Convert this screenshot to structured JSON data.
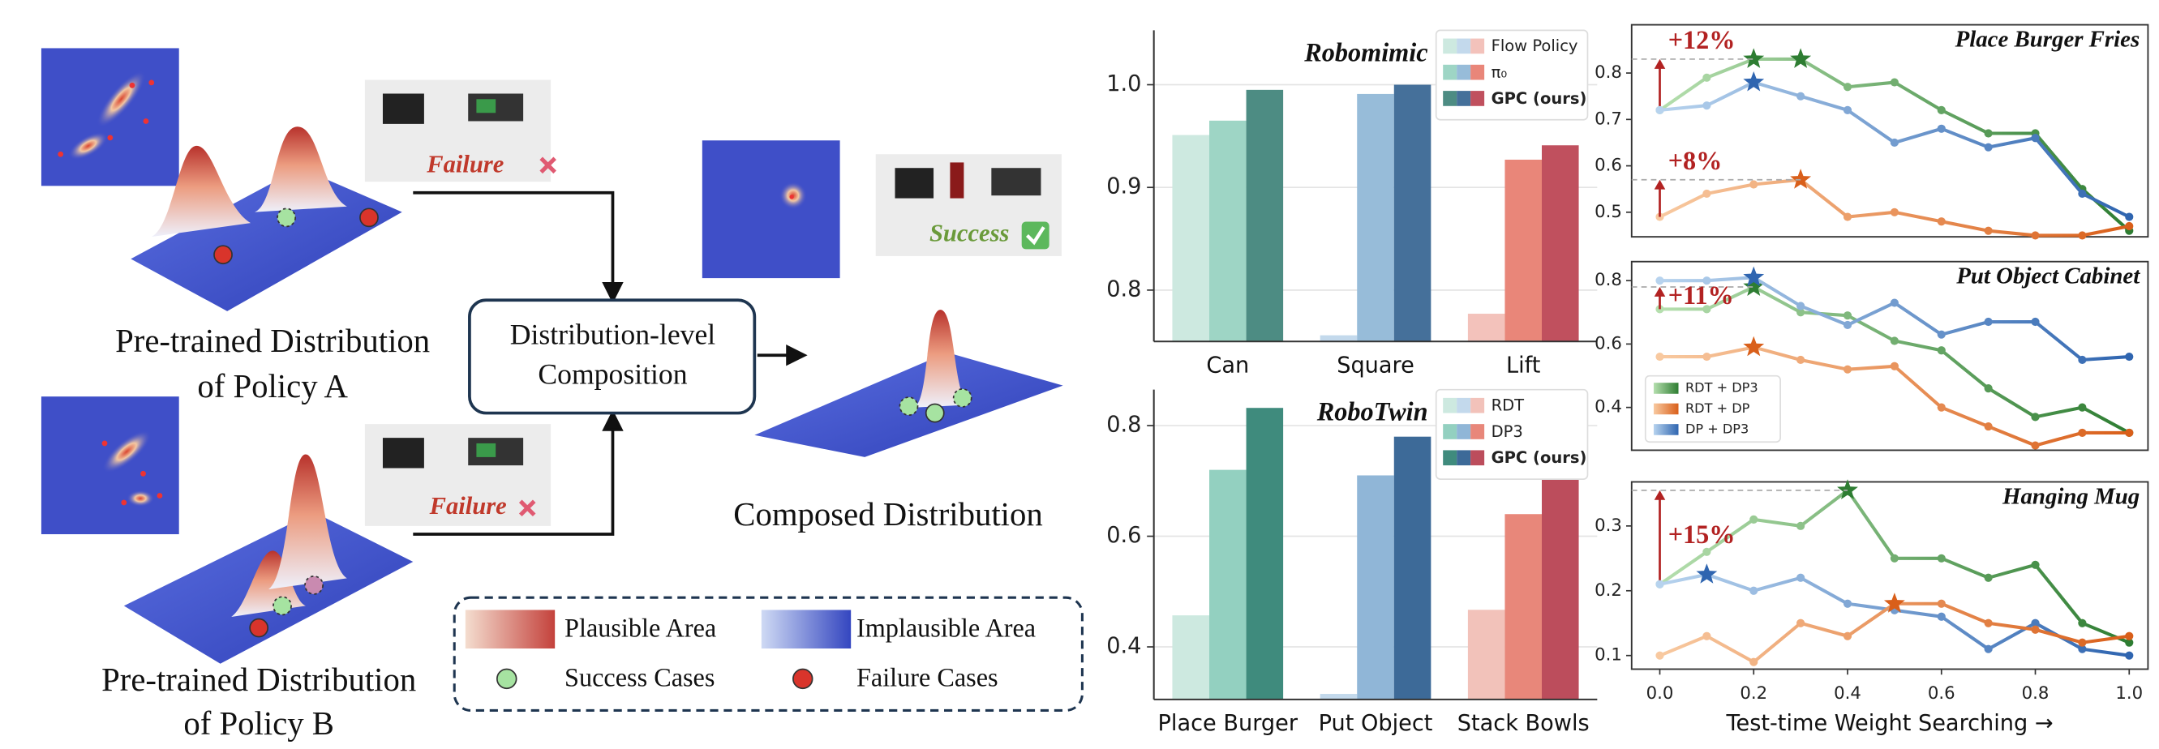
{
  "diagram": {
    "policy_a": {
      "caption": [
        "Pre-trained Distribution",
        "of Policy A"
      ],
      "outcome": "Failure"
    },
    "policy_b": {
      "caption": [
        "Pre-trained Distribution",
        "of Policy B"
      ],
      "outcome": "Failure"
    },
    "composition": [
      "Distribution-level",
      "Composition"
    ],
    "composed": {
      "caption": "Composed Distribution",
      "outcome": "Success"
    },
    "legend": {
      "plausible": "Plausible Area",
      "implausible": "Implausible Area",
      "success": "Success Cases",
      "failure": "Failure Cases"
    }
  },
  "chart_data": [
    {
      "type": "bar",
      "title": "Robomimic",
      "categories": [
        "Can",
        "Square",
        "Lift"
      ],
      "series": [
        {
          "name": "Flow Policy",
          "colors": [
            "#cde9e0",
            "#c3d9ec",
            "#f3c2bb"
          ],
          "values": [
            0.951,
            0.756,
            0.777
          ]
        },
        {
          "name": "π₀",
          "colors": [
            "#9ed5c5",
            "#97bcd9",
            "#e98679"
          ],
          "values": [
            0.965,
            0.991,
            0.927
          ]
        },
        {
          "name": "GPC (ours)",
          "colors": [
            "#4d8c83",
            "#45709a",
            "#c0505e"
          ],
          "values": [
            0.995,
            1.0,
            0.941
          ]
        }
      ],
      "ylim": [
        0.75,
        1.053
      ],
      "yticks": [
        0.8,
        0.9,
        {
          "value": 1,
          "label": "1.0"
        }
      ],
      "grid": true,
      "legend": "upper right"
    },
    {
      "type": "bar",
      "title": "RoboTwin",
      "categories": [
        "Place Burger",
        "Put Object",
        "Stack Bowls"
      ],
      "series": [
        {
          "name": "RDT",
          "colors": [
            "#cde9e0",
            "#c3d9ec",
            "#f2c2ba"
          ],
          "values": [
            0.457,
            0.315,
            0.467
          ]
        },
        {
          "name": "DP3",
          "colors": [
            "#93d0c0",
            "#90b6d7",
            "#e8877a"
          ],
          "values": [
            0.72,
            0.71,
            0.64
          ]
        },
        {
          "name": "GPC (ours)",
          "colors": [
            "#3f8b7d",
            "#3d6a98",
            "#bc4d5c"
          ],
          "values": [
            0.832,
            0.78,
            0.73
          ]
        }
      ],
      "ylim": [
        0.305,
        0.865
      ],
      "yticks": [
        0.4,
        0.6,
        0.8
      ],
      "grid": true,
      "legend": "upper right"
    },
    {
      "type": "line",
      "title": "Place Burger Fries",
      "x": [
        0,
        0.1,
        0.2,
        0.3,
        0.4,
        0.5,
        0.6,
        0.7,
        0.8,
        0.9,
        1
      ],
      "xlim": [
        -0.06,
        1.04
      ],
      "ylim": [
        0.447,
        0.904
      ],
      "yticks": [
        0.5,
        0.6,
        0.7,
        0.8
      ],
      "series": [
        {
          "colors": [
            "#b5dfae",
            "#2e7d32"
          ],
          "values": [
            0.72,
            0.79,
            0.83,
            0.83,
            0.77,
            0.78,
            0.72,
            0.67,
            0.67,
            0.55,
            0.46
          ],
          "stars": [
            2,
            3
          ],
          "annotation": "+12%"
        },
        {
          "colors": [
            "#b7d3ee",
            "#2f65b0"
          ],
          "values": [
            0.72,
            0.73,
            0.78,
            0.75,
            0.72,
            0.65,
            0.68,
            0.64,
            0.66,
            0.54,
            0.49
          ],
          "stars": [
            2
          ]
        },
        {
          "colors": [
            "#f8c9a0",
            "#d95f1a"
          ],
          "values": [
            0.49,
            0.54,
            0.56,
            0.57,
            0.49,
            0.5,
            0.48,
            0.46,
            0.45,
            0.45,
            0.47
          ],
          "stars": [
            3
          ],
          "annotation": "+8%"
        }
      ]
    },
    {
      "type": "line",
      "title": "Put Object Cabinet",
      "x": [
        0,
        0.1,
        0.2,
        0.3,
        0.4,
        0.5,
        0.6,
        0.7,
        0.8,
        0.9,
        1
      ],
      "xlim": [
        -0.06,
        1.04
      ],
      "ylim": [
        0.265,
        0.86
      ],
      "yticks": [
        0.4,
        0.6,
        0.8
      ],
      "legend": "lower left",
      "series": [
        {
          "name": "RDT + DP3",
          "colors": [
            "#b5dfae",
            "#2e7d32"
          ],
          "values": [
            0.71,
            0.71,
            0.78,
            0.7,
            0.69,
            0.61,
            0.58,
            0.46,
            0.37,
            0.4,
            0.32
          ],
          "stars": [
            2
          ],
          "annotation": "+11%"
        },
        {
          "name": "RDT + DP",
          "colors": [
            "#f8c9a0",
            "#d95f1a"
          ],
          "values": [
            0.56,
            0.56,
            0.59,
            0.55,
            0.52,
            0.53,
            0.4,
            0.34,
            0.28,
            0.32,
            0.32
          ],
          "stars": [
            2
          ]
        },
        {
          "name": "DP + DP3",
          "colors": [
            "#b7d3ee",
            "#2f65b0"
          ],
          "values": [
            0.8,
            0.8,
            0.81,
            0.72,
            0.66,
            0.73,
            0.63,
            0.67,
            0.67,
            0.55,
            0.56
          ],
          "stars": [
            2
          ]
        }
      ]
    },
    {
      "type": "line",
      "title": "Hanging Mug",
      "x": [
        0,
        0.1,
        0.2,
        0.3,
        0.4,
        0.5,
        0.6,
        0.7,
        0.8,
        0.9,
        1
      ],
      "xlim": [
        -0.06,
        1.04
      ],
      "ylim": [
        0.079,
        0.368
      ],
      "yticks": [
        0.1,
        0.2,
        0.3
      ],
      "xticks": [
        {
          "value": 0,
          "label": "0.0"
        },
        0.2,
        0.4,
        0.6,
        0.8,
        {
          "value": 1,
          "label": "1.0"
        }
      ],
      "xlabel": "Test-time Weight Searching →",
      "series": [
        {
          "colors": [
            "#b5dfae",
            "#2e7d32"
          ],
          "values": [
            0.21,
            0.26,
            0.31,
            0.3,
            0.355,
            0.25,
            0.25,
            0.22,
            0.24,
            0.15,
            0.12
          ],
          "stars": [
            4
          ],
          "annotation": "+15%"
        },
        {
          "colors": [
            "#b7d3ee",
            "#2f65b0"
          ],
          "values": [
            0.21,
            0.225,
            0.2,
            0.22,
            0.18,
            0.17,
            0.16,
            0.11,
            0.15,
            0.11,
            0.1
          ],
          "stars": [
            1
          ]
        },
        {
          "colors": [
            "#f8c9a0",
            "#d95f1a"
          ],
          "values": [
            0.1,
            0.13,
            0.09,
            0.15,
            0.13,
            0.18,
            0.18,
            0.15,
            0.14,
            0.12,
            0.13
          ],
          "stars": [
            5
          ]
        }
      ]
    }
  ]
}
